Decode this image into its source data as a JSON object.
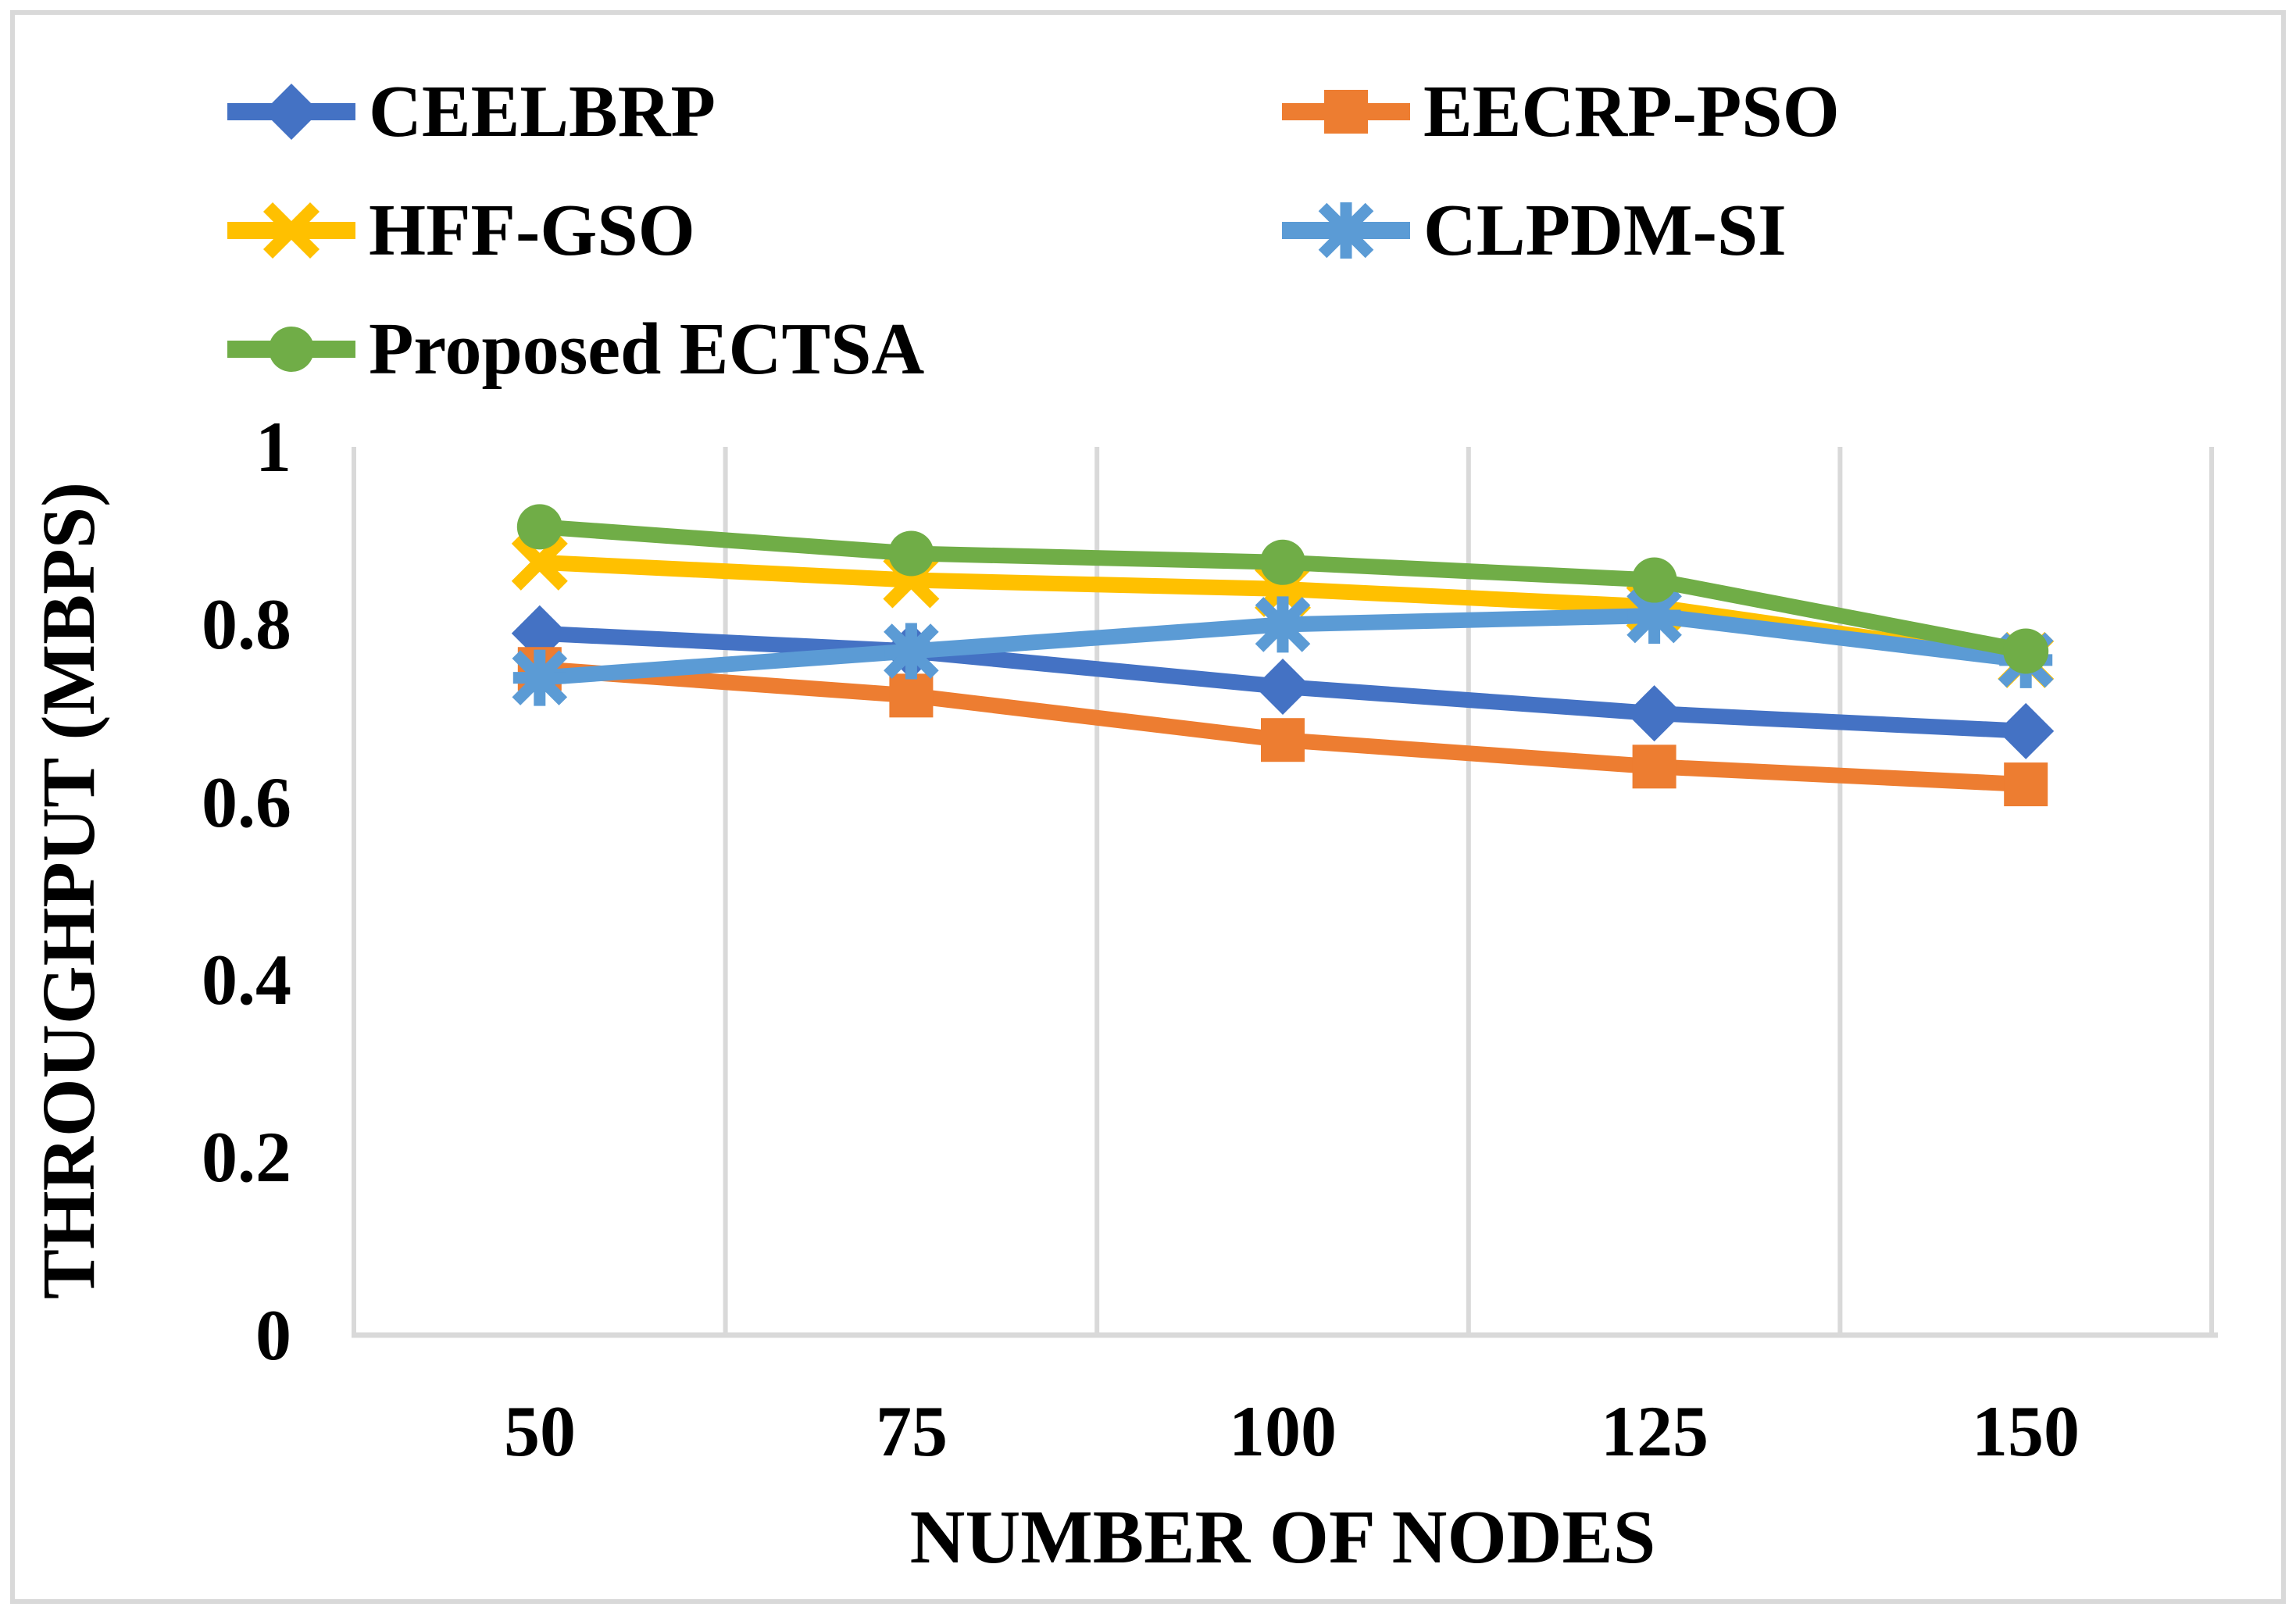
{
  "chart_data": {
    "type": "line",
    "title": "",
    "xlabel": "NUMBER OF NODES",
    "ylabel": "THROUGHPUT (MBPS)",
    "categories": [
      50,
      75,
      100,
      125,
      150
    ],
    "x_tick_labels": [
      "50",
      "75",
      "100",
      "125",
      "150"
    ],
    "y_ticks": [
      "1",
      "0.8",
      "0.6",
      "0.4",
      "0.2",
      "0"
    ],
    "ylim": [
      0,
      1
    ],
    "y_major_step": 0.2,
    "grid": "vertical-gridlines-only",
    "legend_position": "top-left-two-columns",
    "axis_color": "#D9D9D9",
    "series": [
      {
        "name": "CEELBRP",
        "color": "#4472C4",
        "marker": "diamond",
        "values": [
          0.79,
          0.77,
          0.73,
          0.7,
          0.68
        ]
      },
      {
        "name": "EECRP-PSO",
        "color": "#ED7D31",
        "marker": "square",
        "values": [
          0.75,
          0.72,
          0.67,
          0.64,
          0.62
        ]
      },
      {
        "name": "HFF-GSO",
        "color": "#FFC000",
        "marker": "x",
        "values": [
          0.87,
          0.85,
          0.84,
          0.82,
          0.76
        ]
      },
      {
        "name": "CLPDM-SI",
        "color": "#5B9BD5",
        "marker": "asterisk",
        "values": [
          0.74,
          0.77,
          0.8,
          0.81,
          0.76
        ]
      },
      {
        "name": "Proposed ECTSA",
        "color": "#70AD47",
        "marker": "circle",
        "values": [
          0.91,
          0.88,
          0.87,
          0.85,
          0.77
        ]
      }
    ]
  }
}
